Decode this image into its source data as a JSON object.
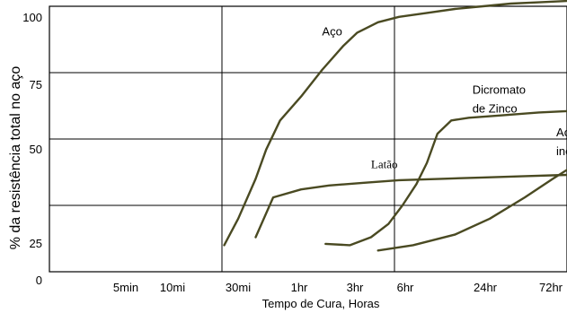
{
  "chart_data": {
    "type": "line",
    "title": "",
    "xlabel": "Tempo de Cura, Horas",
    "ylabel": "% da resistência total no aço",
    "xlim": [
      0,
      8
    ],
    "ylim": [
      0,
      100
    ],
    "x_ticks": [
      "5min",
      "10mi",
      "30mi",
      "1hr",
      "3hr",
      "6hr",
      "24hr",
      "72hr"
    ],
    "y_ticks": [
      "0",
      "25",
      "50",
      "75",
      "100"
    ],
    "y_tick_values": [
      0,
      25,
      50,
      75,
      100
    ],
    "grid": true,
    "series": [
      {
        "name": "Aço",
        "color": "#4a4a22",
        "x": [
          2.5,
          2.7,
          2.95,
          3.1,
          3.3,
          3.6,
          3.9,
          4.2,
          4.4,
          4.7,
          5.0,
          5.4,
          5.8,
          6.2,
          6.6,
          7.0,
          7.4
        ],
        "y": [
          10,
          20,
          35,
          46,
          57,
          66,
          76,
          85,
          90,
          94,
          96,
          97.5,
          99,
          100,
          101,
          101.5,
          102
        ]
      },
      {
        "name": "Dicromato de Zinco",
        "color": "#4a4a22",
        "x": [
          3.95,
          4.3,
          4.6,
          4.85,
          5.05,
          5.25,
          5.4,
          5.55,
          5.75,
          6.0,
          6.5,
          7.0,
          7.4,
          7.8,
          8.05
        ],
        "y": [
          10.5,
          10,
          13,
          18,
          25,
          33,
          41,
          52,
          57,
          58,
          59,
          60,
          60.5,
          60.5,
          60
        ]
      },
      {
        "name": "Latão",
        "color": "#4a4a22",
        "x": [
          2.95,
          3.2,
          3.6,
          4.0,
          4.5,
          5.0,
          5.6,
          6.2,
          6.8,
          7.4,
          8.05
        ],
        "y": [
          13,
          28,
          31,
          32.5,
          33.5,
          34.5,
          35,
          35.5,
          36,
          36.5,
          36.5
        ]
      },
      {
        "name": "Aço inoxidável",
        "color": "#4a4a22",
        "x": [
          4.7,
          5.2,
          5.8,
          6.3,
          6.8,
          7.2,
          7.5,
          7.7,
          8.05
        ],
        "y": [
          8,
          10,
          14,
          20,
          28,
          35,
          40,
          42,
          42.5
        ]
      }
    ],
    "annotations": [
      {
        "text": "Aço",
        "x": 3.9,
        "y": 89
      },
      {
        "text": "Dicromato",
        "x": 6.05,
        "y": 67
      },
      {
        "text": "de Zinco",
        "x": 6.05,
        "y": 60
      },
      {
        "text": "Latão",
        "x": 4.6,
        "y": 39
      },
      {
        "text": "Aço",
        "x": 7.25,
        "y": 51
      },
      {
        "text": "inoxidável",
        "x": 7.25,
        "y": 44
      }
    ]
  }
}
